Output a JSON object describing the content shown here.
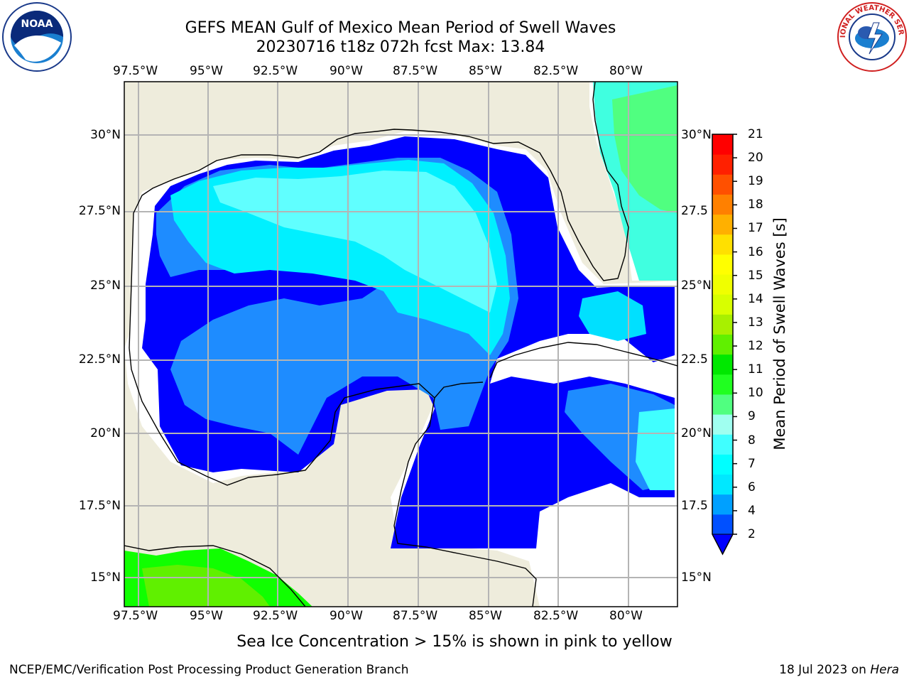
{
  "header": {
    "title_line1": "GEFS MEAN Gulf of Mexico Mean Period of Swell Waves",
    "title_line2": "20230716 t18z 072h fcst   Max: 13.84"
  },
  "map": {
    "lon_labels": [
      "97.5°W",
      "95°W",
      "92.5°W",
      "90°W",
      "87.5°W",
      "85°W",
      "82.5°W",
      "80°W"
    ],
    "lat_labels_left": [
      "30°N",
      "27.5°N",
      "25°N",
      "22.5°N",
      "20°N",
      "17.5°N",
      "15°N"
    ],
    "lat_labels_right": [
      "30°N",
      "27.5",
      "25°N",
      "22.5",
      "20°N",
      "17.5",
      "15°N"
    ],
    "colors": {
      "land": "#eeecdc",
      "grid": "#b4b4b4",
      "coast": "#000000"
    }
  },
  "colorbar": {
    "label": "Mean Period of Swell Waves [s]",
    "ticks": [
      "21",
      "20",
      "19",
      "18",
      "17",
      "16",
      "15",
      "14",
      "13",
      "12",
      "11",
      "10",
      "9",
      "8",
      "7",
      "6",
      "4",
      "2"
    ],
    "level_colors": [
      "#0050ff",
      "#00a0ff",
      "#00e8ff",
      "#00ffff",
      "#40ffff",
      "#a0fff0",
      "#50ff80",
      "#20ff20",
      "#00e800",
      "#60f000",
      "#a8f000",
      "#d8ff00",
      "#f0ff00",
      "#ffff00",
      "#ffe000",
      "#ffb000",
      "#ff8000",
      "#ff5000",
      "#ff2000",
      "#ff0000"
    ],
    "extend_color": "#0000ff"
  },
  "footer": {
    "sea_ice_note": "Sea Ice Concentration > 15% is shown in pink to yellow",
    "producer": "NCEP/EMC/Verification Post Processing Product Generation Branch",
    "date": "18 Jul 2023 on",
    "host": "Hera"
  },
  "logos": {
    "left_text": "NOAA",
    "right_text": "NATIONAL WEATHER SERVICE"
  }
}
